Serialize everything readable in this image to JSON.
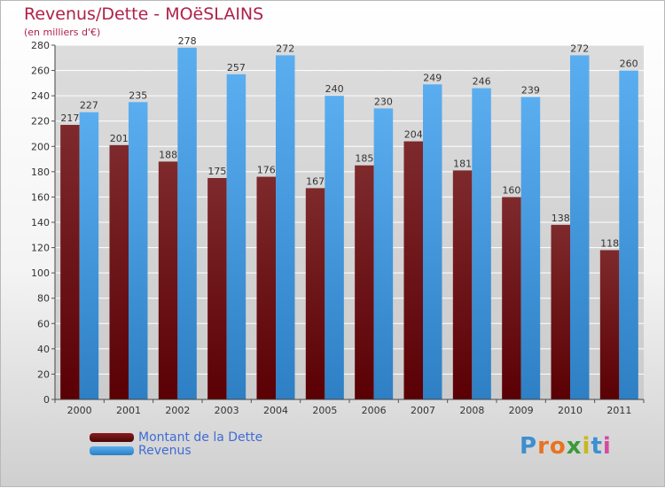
{
  "title": "Revenus/Dette - MOëSLAINS",
  "subtitle": "(en milliers d'€)",
  "logo": {
    "text": "Proxiti",
    "colors": [
      "#3c8fd1",
      "#e8731f",
      "#e8731f",
      "#3a9a3a",
      "#c7b81c",
      "#3c8fd1",
      "#d64aa0"
    ]
  },
  "legend": [
    {
      "label": "Montant de la Dette",
      "color": "#6b0e12"
    },
    {
      "label": "Revenus",
      "color": "#3a8ad4"
    }
  ],
  "chart_data": {
    "type": "bar",
    "categories": [
      "2000",
      "2001",
      "2002",
      "2003",
      "2004",
      "2005",
      "2006",
      "2007",
      "2008",
      "2009",
      "2010",
      "2011"
    ],
    "series": [
      {
        "name": "Montant de la Dette",
        "color": "#6b0e12",
        "values": [
          217,
          201,
          188,
          175,
          176,
          167,
          185,
          204,
          181,
          160,
          138,
          118
        ]
      },
      {
        "name": "Revenus",
        "color": "#3a8ad4",
        "values": [
          227,
          235,
          278,
          257,
          272,
          240,
          230,
          249,
          246,
          239,
          272,
          260
        ]
      }
    ],
    "ylim": [
      0,
      280
    ],
    "yticks": [
      0,
      20,
      40,
      60,
      80,
      100,
      120,
      140,
      160,
      180,
      200,
      220,
      240,
      260,
      280
    ],
    "grid": true
  }
}
